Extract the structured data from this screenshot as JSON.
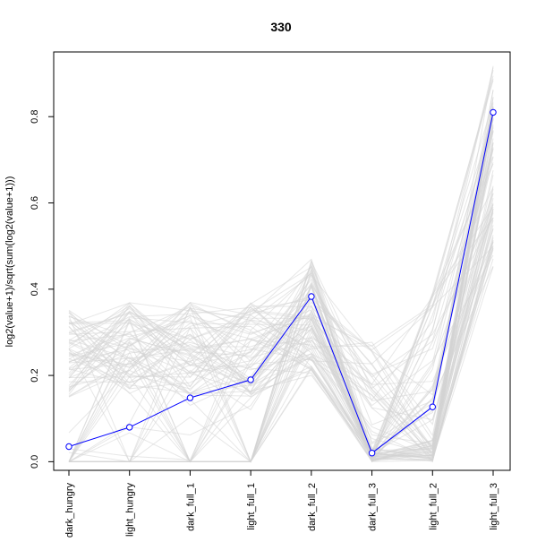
{
  "chart_data": {
    "type": "line",
    "title": "330",
    "xlabel": "",
    "ylabel": "log2(value+1)/sqrt(sum(log2(value+1)))",
    "categories": [
      "dark_hungry",
      "light_hungry",
      "dark_full_1",
      "light_full_1",
      "dark_full_2",
      "dark_full_3",
      "light_full_2",
      "light_full_3"
    ],
    "y_ticks": [
      "0.0",
      "0.2",
      "0.4",
      "0.6",
      "0.8"
    ],
    "y_tick_values": [
      0.0,
      0.2,
      0.4,
      0.6,
      0.8
    ],
    "ylim": [
      -0.02,
      0.95
    ],
    "grid": false,
    "highlight": {
      "name": "",
      "color": "#0000ff",
      "values": [
        0.035,
        0.08,
        0.148,
        0.19,
        0.383,
        0.02,
        0.127,
        0.81
      ]
    },
    "background_series_color": "#d3d3d3",
    "background_series_count": 90
  }
}
